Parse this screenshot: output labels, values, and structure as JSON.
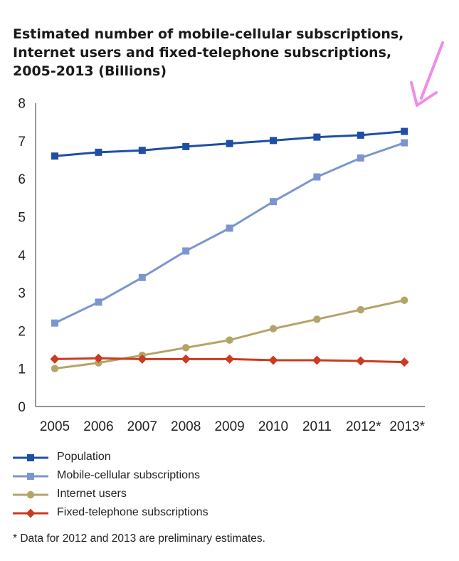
{
  "colors": {
    "population": "#1f4fa3",
    "mobile": "#7b96cf",
    "internet": "#b3a468",
    "fixed": "#cc3a1f",
    "arrow": "#f08ce8"
  },
  "chart_data": {
    "type": "line",
    "title_lines": [
      "Estimated number of mobile-cellular subscriptions,",
      "Internet users and fixed-telephone subscriptions,",
      "2005-2013 (Billions)"
    ],
    "categories": [
      "2005",
      "2006",
      "2007",
      "2008",
      "2009",
      "2010",
      "2011",
      "2012*",
      "2013*"
    ],
    "yticks": [
      "0",
      "1",
      "2",
      "3",
      "4",
      "5",
      "6",
      "7",
      "8"
    ],
    "ylim": [
      0,
      8
    ],
    "series": [
      {
        "key": "population",
        "name": "Population",
        "marker": "square",
        "values": [
          6.6,
          6.7,
          6.75,
          6.85,
          6.93,
          7.01,
          7.1,
          7.15,
          7.25
        ]
      },
      {
        "key": "mobile",
        "name": "Mobile-cellular subscriptions",
        "marker": "square",
        "values": [
          2.2,
          2.75,
          3.4,
          4.1,
          4.7,
          5.4,
          6.05,
          6.55,
          6.95
        ]
      },
      {
        "key": "internet",
        "name": "Internet users",
        "marker": "circle",
        "values": [
          1.0,
          1.15,
          1.35,
          1.55,
          1.75,
          2.05,
          2.3,
          2.55,
          2.8
        ]
      },
      {
        "key": "fixed",
        "name": "Fixed-telephone subscriptions",
        "marker": "diamond",
        "values": [
          1.25,
          1.27,
          1.25,
          1.25,
          1.25,
          1.22,
          1.22,
          1.2,
          1.17
        ]
      }
    ],
    "footnote": "* Data for 2012 and 2013 are preliminary estimates.",
    "annotation": "arrow pointing to 2013* population value"
  }
}
